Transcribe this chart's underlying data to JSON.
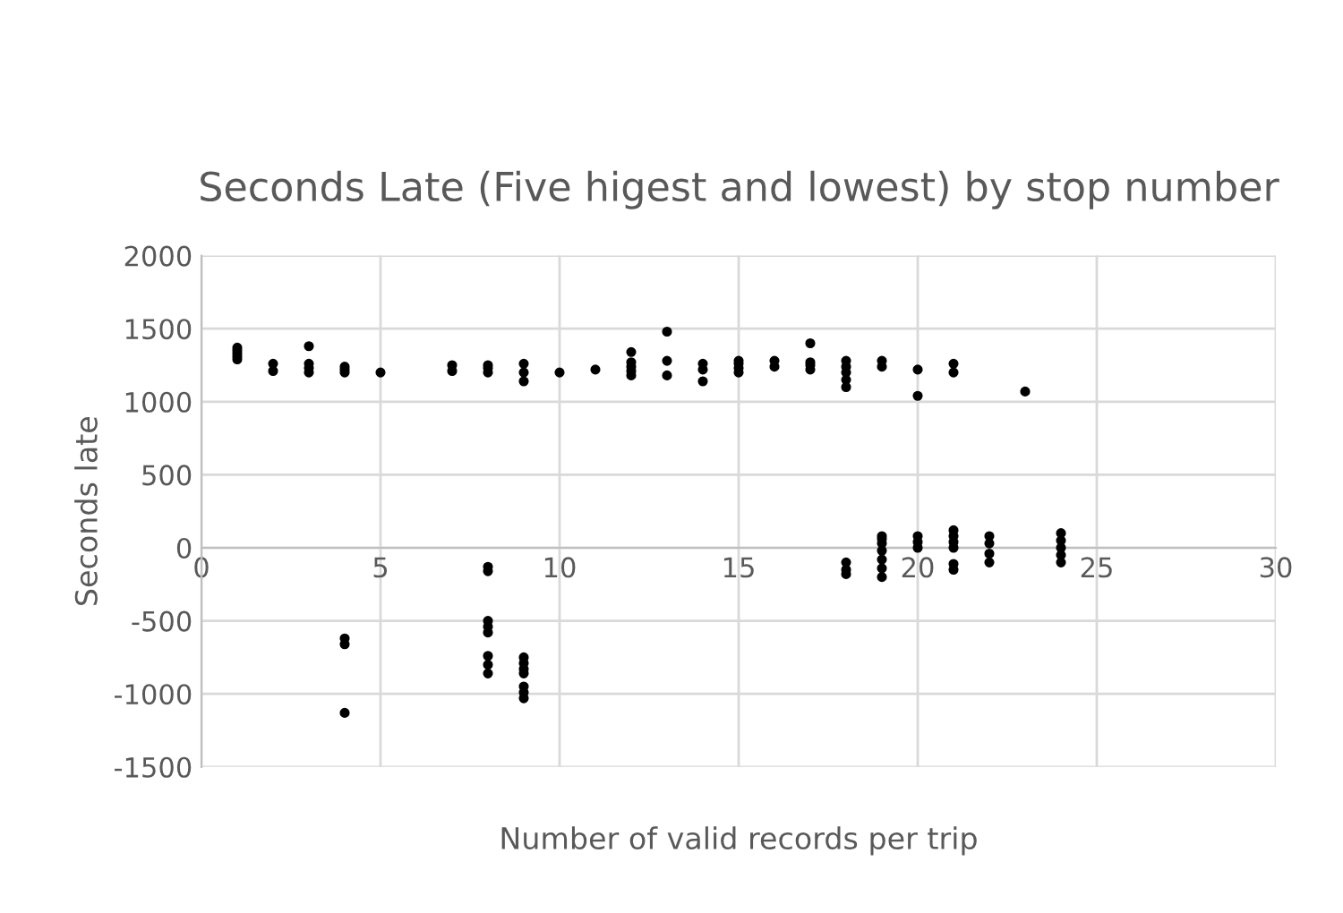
{
  "chart_data": {
    "type": "scatter",
    "title": "Seconds Late (Five higest and lowest) by stop number",
    "xlabel": "Number of valid records per trip",
    "ylabel": "Seconds late",
    "xlim": [
      0,
      30
    ],
    "xticks": [
      0,
      5,
      10,
      15,
      20,
      25,
      30
    ],
    "ylim": [
      -1500,
      2000
    ],
    "yticks": [
      -1500,
      -1000,
      -500,
      0,
      500,
      1000,
      1500,
      2000
    ],
    "grid": true,
    "marker": "circle",
    "series": [
      {
        "color": "#000000",
        "x": [
          1,
          1,
          1,
          1,
          1,
          2,
          2,
          3,
          3,
          3,
          3,
          4,
          4,
          4,
          5,
          7,
          7,
          8,
          8,
          8,
          9,
          9,
          9,
          10,
          11,
          12,
          12,
          12,
          12,
          12,
          13,
          13,
          13,
          14,
          14,
          14,
          15,
          15,
          15,
          15,
          16,
          16,
          17,
          17,
          17,
          17,
          18,
          18,
          18,
          18,
          18,
          19,
          19,
          20,
          20,
          21,
          21,
          23,
          4,
          4,
          4,
          8,
          8,
          8,
          8,
          8,
          8,
          8,
          8,
          9,
          9,
          9,
          9,
          9,
          9,
          9,
          18,
          18,
          18,
          19,
          19,
          19,
          19,
          19,
          19,
          19,
          20,
          20,
          20,
          21,
          21,
          21,
          21,
          21,
          21,
          22,
          22,
          22,
          22,
          24,
          24,
          24,
          24,
          24
        ],
        "values": [
          1290,
          1310,
          1330,
          1350,
          1370,
          1210,
          1260,
          1200,
          1230,
          1260,
          1380,
          1200,
          1220,
          1240,
          1200,
          1210,
          1250,
          1200,
          1230,
          1250,
          1140,
          1200,
          1260,
          1200,
          1220,
          1180,
          1210,
          1240,
          1270,
          1340,
          1180,
          1280,
          1480,
          1140,
          1220,
          1260,
          1200,
          1230,
          1260,
          1280,
          1240,
          1280,
          1220,
          1250,
          1270,
          1400,
          1100,
          1150,
          1200,
          1240,
          1280,
          1240,
          1280,
          1040,
          1220,
          1200,
          1260,
          1070,
          -620,
          -660,
          -1130,
          -130,
          -160,
          -500,
          -540,
          -580,
          -740,
          -800,
          -860,
          -750,
          -790,
          -830,
          -860,
          -950,
          -990,
          -1030,
          -100,
          -150,
          -180,
          -200,
          -140,
          -80,
          -20,
          30,
          60,
          80,
          0,
          40,
          80,
          -150,
          -110,
          0,
          40,
          80,
          120,
          -100,
          -40,
          30,
          80,
          -100,
          -50,
          0,
          50,
          100
        ]
      }
    ]
  }
}
